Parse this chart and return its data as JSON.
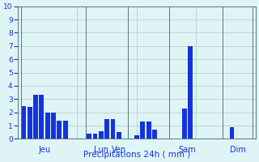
{
  "bars": [
    {
      "x": 1,
      "height": 2.5
    },
    {
      "x": 2,
      "height": 2.4
    },
    {
      "x": 3,
      "height": 3.3
    },
    {
      "x": 4,
      "height": 3.3
    },
    {
      "x": 5,
      "height": 2.0
    },
    {
      "x": 6,
      "height": 2.0
    },
    {
      "x": 7,
      "height": 1.4
    },
    {
      "x": 8,
      "height": 1.4
    },
    {
      "x": 12,
      "height": 0.4
    },
    {
      "x": 13,
      "height": 0.4
    },
    {
      "x": 14,
      "height": 0.6
    },
    {
      "x": 15,
      "height": 1.5
    },
    {
      "x": 16,
      "height": 1.5
    },
    {
      "x": 17,
      "height": 0.5
    },
    {
      "x": 20,
      "height": 0.3
    },
    {
      "x": 21,
      "height": 1.3
    },
    {
      "x": 22,
      "height": 1.3
    },
    {
      "x": 23,
      "height": 0.7
    },
    {
      "x": 28,
      "height": 2.3
    },
    {
      "x": 29,
      "height": 7.0
    },
    {
      "x": 36,
      "height": 0.9
    }
  ],
  "bar_color": "#1533dd",
  "bg_color": "#dff5f5",
  "grid_color": "#b0c8c8",
  "xlabel": "Précipitations 24h ( mm )",
  "ylim": [
    0,
    10
  ],
  "yticks": [
    0,
    1,
    2,
    3,
    4,
    5,
    6,
    7,
    8,
    9,
    10
  ],
  "xlim": [
    0,
    40
  ],
  "separators": [
    0.5,
    11.5,
    18.5,
    25.5,
    34.5,
    39.5
  ],
  "day_labels": [
    {
      "x": 4.5,
      "label": "Jeu"
    },
    {
      "x": 14.0,
      "label": "Lun"
    },
    {
      "x": 17.0,
      "label": "Ven"
    },
    {
      "x": 28.5,
      "label": "Sam"
    },
    {
      "x": 37.0,
      "label": "Dim"
    }
  ],
  "xlabel_color": "#1533dd",
  "tick_color": "#1533dd"
}
